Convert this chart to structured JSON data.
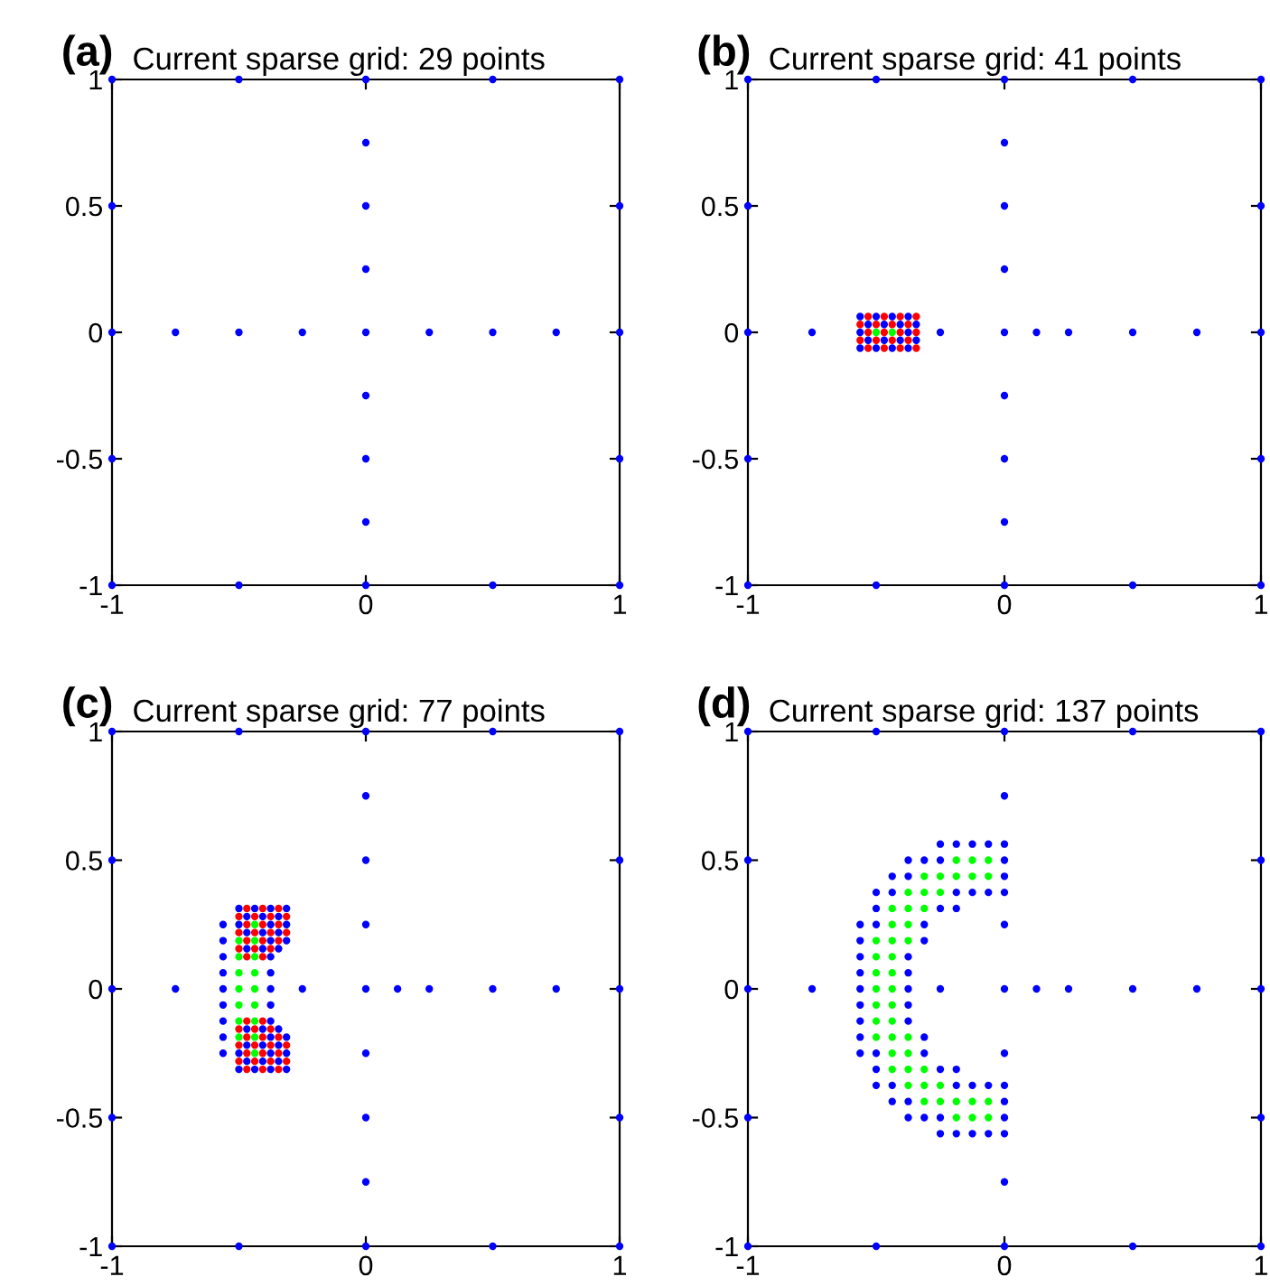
{
  "chart_data": [
    {
      "type": "scatter",
      "title": "Current sparse grid: 29 points",
      "annotations": [
        "(a)"
      ],
      "xlim": [
        -1,
        1
      ],
      "ylim": [
        -1,
        1
      ],
      "xticks": [
        -1,
        0,
        1
      ],
      "yticks": [
        -1,
        -0.5,
        0,
        0.5,
        1
      ],
      "grid": false,
      "series": [
        {
          "color": "#0000ff",
          "x": [
            -1,
            -1,
            1,
            1,
            -0.5,
            0.5,
            -0.5,
            0.5,
            -1,
            -1,
            1,
            1,
            0,
            0,
            -1,
            1,
            -0.75,
            -0.5,
            -0.25,
            0,
            0.25,
            0.5,
            0.75,
            0,
            0,
            0,
            0,
            0,
            0
          ],
          "values": [
            -1,
            1,
            -1,
            1,
            1,
            1,
            -1,
            -1,
            0.5,
            -0.5,
            0.5,
            -0.5,
            1,
            -1,
            0,
            0,
            0,
            0,
            0,
            0,
            0,
            0,
            0,
            0.75,
            0.5,
            0.25,
            -0.25,
            -0.5,
            -0.75
          ]
        }
      ]
    },
    {
      "type": "scatter",
      "title": "Current sparse grid: 41 points",
      "annotations": [
        "(b)"
      ],
      "xlim": [
        -1,
        1
      ],
      "ylim": [
        -1,
        1
      ],
      "xticks": [
        -1,
        0,
        1
      ],
      "yticks": [
        -1,
        -0.5,
        0,
        0.5,
        1
      ],
      "grid": false,
      "series": [
        {
          "color": "#0000ff",
          "x": [
            -1,
            -1,
            1,
            1,
            -0.5,
            0.5,
            -0.5,
            0.5,
            -1,
            -1,
            1,
            1,
            0,
            0,
            -1,
            1,
            -0.75,
            -0.25,
            0,
            0.125,
            0.25,
            0.5,
            0.75,
            0,
            0,
            0,
            0,
            0,
            0,
            -0.5625,
            -0.5,
            -0.4375,
            -0.375,
            -0.53125,
            -0.46875,
            -0.40625,
            -0.34375,
            -0.5625,
            -0.375,
            -0.53125,
            -0.46875,
            -0.40625,
            -0.34375,
            -0.5625,
            -0.5,
            -0.4375,
            -0.375
          ],
          "values": [
            -1,
            1,
            -1,
            1,
            1,
            1,
            -1,
            -1,
            0.5,
            -0.5,
            0.5,
            -0.5,
            1,
            -1,
            0,
            0,
            0,
            0,
            0,
            0,
            0,
            0,
            0,
            0.75,
            0.5,
            0.25,
            -0.25,
            -0.5,
            -0.75,
            0.0625,
            0.0625,
            0.0625,
            0.0625,
            0.03125,
            0.03125,
            0.03125,
            0.03125,
            0,
            0,
            -0.03125,
            -0.03125,
            -0.03125,
            -0.03125,
            -0.0625,
            -0.0625,
            -0.0625,
            -0.0625
          ]
        },
        {
          "color": "#ff0000",
          "x": [
            -0.53125,
            -0.46875,
            -0.40625,
            -0.34375,
            -0.5625,
            -0.5,
            -0.4375,
            -0.375,
            -0.53125,
            -0.46875,
            -0.40625,
            -0.34375,
            -0.5625,
            -0.5,
            -0.4375,
            -0.375,
            -0.53125,
            -0.46875,
            -0.40625,
            -0.34375
          ],
          "values": [
            0.0625,
            0.0625,
            0.0625,
            0.0625,
            0.03125,
            0.03125,
            0.03125,
            0.03125,
            0,
            0,
            0,
            0,
            -0.03125,
            -0.03125,
            -0.03125,
            -0.03125,
            -0.0625,
            -0.0625,
            -0.0625,
            -0.0625
          ]
        },
        {
          "color": "#00ff00",
          "x": [
            -0.5,
            -0.4375
          ],
          "values": [
            0,
            0
          ]
        }
      ]
    },
    {
      "type": "scatter",
      "title": "Current sparse grid: 77 points",
      "annotations": [
        "(c)"
      ],
      "xlim": [
        -1,
        1
      ],
      "ylim": [
        -1,
        1
      ],
      "xticks": [
        -1,
        0,
        1
      ],
      "yticks": [
        -1,
        -0.5,
        0,
        0.5,
        1
      ],
      "grid": false,
      "series": [
        {
          "color": "#0000ff",
          "x": [
            -1,
            -1,
            1,
            1,
            -0.5,
            0.5,
            -0.5,
            0.5,
            -1,
            -1,
            1,
            1,
            0,
            0,
            -1,
            1,
            -0.75,
            -0.25,
            0,
            0.125,
            0.25,
            0.5,
            0.75,
            0,
            0,
            0,
            0,
            0,
            0,
            -0.5625,
            -0.5625,
            -0.5625,
            -0.5625,
            -0.5625,
            -0.5625,
            -0.5625,
            -0.5625,
            -0.5625,
            -0.375,
            -0.375,
            -0.375,
            -0.5,
            -0.4375,
            -0.375,
            -0.3125,
            -0.46875,
            -0.40625,
            -0.34375,
            -0.5,
            -0.375,
            -0.3125,
            -0.46875,
            -0.40625,
            -0.34375,
            -0.375,
            -0.3125,
            -0.46875,
            -0.40625,
            -0.34375,
            -0.375,
            -0.5,
            -0.4375,
            -0.375,
            -0.3125,
            -0.46875,
            -0.40625,
            -0.34375,
            -0.5,
            -0.375,
            -0.3125,
            -0.46875,
            -0.40625,
            -0.34375,
            -0.375,
            -0.3125,
            -0.46875,
            -0.40625,
            -0.34375,
            -0.375
          ],
          "values": [
            -1,
            1,
            -1,
            1,
            1,
            1,
            -1,
            -1,
            0.5,
            -0.5,
            0.5,
            -0.5,
            1,
            -1,
            0,
            0,
            0,
            0,
            0,
            0,
            0,
            0,
            0,
            0.75,
            0.5,
            0.25,
            -0.25,
            -0.5,
            -0.75,
            0.25,
            0.1875,
            0.125,
            0.0625,
            0,
            -0.0625,
            -0.125,
            -0.1875,
            -0.25,
            0.0625,
            0,
            -0.0625,
            0.3125,
            0.3125,
            0.3125,
            0.3125,
            0.28125,
            0.28125,
            0.28125,
            0.25,
            0.25,
            0.25,
            0.21875,
            0.21875,
            0.21875,
            0.1875,
            0.1875,
            0.15625,
            0.15625,
            0.15625,
            0.125,
            -0.3125,
            -0.3125,
            -0.3125,
            -0.3125,
            -0.28125,
            -0.28125,
            -0.28125,
            -0.25,
            -0.25,
            -0.25,
            -0.21875,
            -0.21875,
            -0.21875,
            -0.1875,
            -0.1875,
            -0.15625,
            -0.15625,
            -0.15625,
            -0.125
          ]
        },
        {
          "color": "#ff0000",
          "x": [
            -0.46875,
            -0.40625,
            -0.34375,
            -0.5,
            -0.4375,
            -0.375,
            -0.3125,
            -0.46875,
            -0.40625,
            -0.34375,
            -0.5,
            -0.4375,
            -0.375,
            -0.3125,
            -0.46875,
            -0.40625,
            -0.34375,
            -0.5,
            -0.4375,
            -0.375,
            -0.46875,
            -0.40625,
            -0.46875,
            -0.40625,
            -0.34375,
            -0.5,
            -0.4375,
            -0.375,
            -0.3125,
            -0.46875,
            -0.40625,
            -0.34375,
            -0.5,
            -0.4375,
            -0.375,
            -0.3125,
            -0.46875,
            -0.40625,
            -0.34375,
            -0.5,
            -0.4375,
            -0.375,
            -0.46875,
            -0.40625
          ],
          "values": [
            0.3125,
            0.3125,
            0.3125,
            0.28125,
            0.28125,
            0.28125,
            0.28125,
            0.25,
            0.25,
            0.25,
            0.21875,
            0.21875,
            0.21875,
            0.21875,
            0.1875,
            0.1875,
            0.1875,
            0.15625,
            0.15625,
            0.15625,
            0.125,
            0.125,
            -0.3125,
            -0.3125,
            -0.3125,
            -0.28125,
            -0.28125,
            -0.28125,
            -0.28125,
            -0.25,
            -0.25,
            -0.25,
            -0.21875,
            -0.21875,
            -0.21875,
            -0.21875,
            -0.1875,
            -0.1875,
            -0.1875,
            -0.15625,
            -0.15625,
            -0.15625,
            -0.125,
            -0.125
          ]
        },
        {
          "color": "#00ff00",
          "x": [
            -0.4375,
            -0.5,
            -0.4375,
            -0.5,
            -0.4375,
            -0.5,
            -0.4375,
            -0.5,
            -0.4375,
            -0.5,
            -0.4375,
            -0.4375,
            -0.5,
            -0.4375,
            -0.5,
            -0.4375
          ],
          "values": [
            0.25,
            0.1875,
            0.1875,
            0.125,
            0.125,
            0.0625,
            0.0625,
            0,
            0,
            -0.0625,
            -0.0625,
            -0.25,
            -0.1875,
            -0.1875,
            -0.125,
            -0.125
          ]
        }
      ]
    },
    {
      "type": "scatter",
      "title": "Current sparse grid: 137 points",
      "annotations": [
        "(d)"
      ],
      "xlim": [
        -1,
        1
      ],
      "ylim": [
        -1,
        1
      ],
      "xticks": [
        -1,
        0,
        1
      ],
      "yticks": [
        -1,
        -0.5,
        0,
        0.5,
        1
      ],
      "grid": false,
      "series": [
        {
          "color": "#0000ff",
          "x": [
            -1,
            -1,
            1,
            1,
            -0.5,
            0.5,
            -0.5,
            0.5,
            -1,
            -1,
            1,
            1,
            0,
            0,
            -1,
            1,
            -0.75,
            -0.25,
            0,
            0.125,
            0.25,
            0.5,
            0.75,
            0,
            0,
            0,
            0,
            -0.25,
            -0.1875,
            -0.125,
            -0.0625,
            0,
            -0.375,
            -0.3125,
            -0.25,
            0,
            -0.4375,
            -0.375,
            0,
            -0.5,
            -0.4375,
            -0.1875,
            -0.125,
            -0.0625,
            0,
            -0.5,
            -0.25,
            -0.1875,
            -0.5625,
            -0.5,
            -0.3125,
            -0.5625,
            -0.3125,
            -0.5625,
            -0.375,
            -0.5625,
            -0.375,
            -0.5625,
            -0.375,
            -0.25,
            -0.1875,
            -0.125,
            -0.0625,
            0,
            -0.375,
            -0.3125,
            -0.25,
            0,
            -0.4375,
            -0.375,
            0,
            -0.5,
            -0.4375,
            -0.1875,
            -0.125,
            -0.0625,
            0,
            -0.5,
            -0.25,
            -0.1875,
            -0.5625,
            -0.5,
            -0.3125,
            -0.5625,
            -0.3125,
            -0.5625,
            -0.375,
            -0.5625,
            -0.375
          ],
          "values": [
            -1,
            1,
            -1,
            1,
            1,
            1,
            -1,
            -1,
            0.5,
            -0.5,
            0.5,
            -0.5,
            1,
            -1,
            0,
            0,
            0,
            0,
            0,
            0,
            0,
            0,
            0,
            0.75,
            -0.75,
            0.25,
            -0.25,
            0.5625,
            0.5625,
            0.5625,
            0.5625,
            0.5625,
            0.5,
            0.5,
            0.5,
            0.5,
            0.4375,
            0.4375,
            0.4375,
            0.375,
            0.375,
            0.375,
            0.375,
            0.375,
            0.375,
            0.3125,
            0.3125,
            0.3125,
            0.25,
            0.25,
            0.25,
            0.1875,
            0.1875,
            0.125,
            0.125,
            0.0625,
            0.0625,
            0,
            0,
            -0.5625,
            -0.5625,
            -0.5625,
            -0.5625,
            -0.5625,
            -0.5,
            -0.5,
            -0.5,
            -0.5,
            -0.4375,
            -0.4375,
            -0.4375,
            -0.375,
            -0.375,
            -0.375,
            -0.375,
            -0.375,
            -0.375,
            -0.3125,
            -0.3125,
            -0.3125,
            -0.25,
            -0.25,
            -0.25,
            -0.1875,
            -0.1875,
            -0.125,
            -0.125,
            -0.0625,
            -0.0625
          ]
        },
        {
          "color": "#00ff00",
          "x": [
            -0.1875,
            -0.125,
            -0.0625,
            -0.3125,
            -0.25,
            -0.1875,
            -0.125,
            -0.0625,
            -0.375,
            -0.3125,
            -0.25,
            -0.4375,
            -0.375,
            -0.3125,
            -0.4375,
            -0.375,
            -0.5,
            -0.4375,
            -0.375,
            -0.5,
            -0.4375,
            -0.5,
            -0.4375,
            -0.5,
            -0.4375,
            -0.1875,
            -0.125,
            -0.0625,
            -0.3125,
            -0.25,
            -0.1875,
            -0.125,
            -0.0625,
            -0.375,
            -0.3125,
            -0.25,
            -0.4375,
            -0.375,
            -0.3125,
            -0.4375,
            -0.375,
            -0.5,
            -0.4375,
            -0.375,
            -0.5,
            -0.4375,
            -0.5,
            -0.4375
          ],
          "values": [
            0.5,
            0.5,
            0.5,
            0.4375,
            0.4375,
            0.4375,
            0.4375,
            0.4375,
            0.375,
            0.375,
            0.375,
            0.3125,
            0.3125,
            0.3125,
            0.25,
            0.25,
            0.1875,
            0.1875,
            0.1875,
            0.125,
            0.125,
            0.0625,
            0.0625,
            0,
            0,
            -0.5,
            -0.5,
            -0.5,
            -0.4375,
            -0.4375,
            -0.4375,
            -0.4375,
            -0.4375,
            -0.375,
            -0.375,
            -0.375,
            -0.3125,
            -0.3125,
            -0.3125,
            -0.25,
            -0.25,
            -0.1875,
            -0.1875,
            -0.1875,
            -0.125,
            -0.125,
            -0.0625,
            -0.0625
          ]
        }
      ]
    }
  ]
}
